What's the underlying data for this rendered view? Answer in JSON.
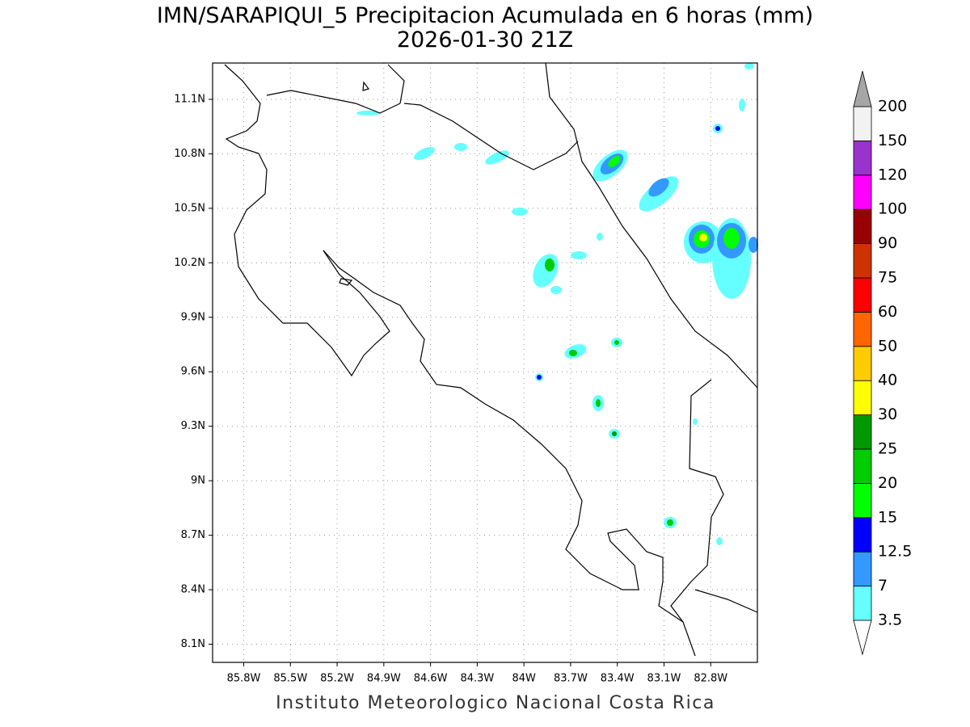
{
  "chart_data": {
    "type": "map",
    "title": "IMN/SARAPIQUI_5 Precipitacion Acumulada en 6 horas (mm)",
    "subtitle": "2026-01-30 21Z",
    "footer": "Instituto Meteorologico Nacional Costa Rica",
    "xlim": [
      -86.0,
      -82.5
    ],
    "ylim": [
      8.0,
      11.3
    ],
    "xticks": [
      {
        "value": -85.8,
        "label": "85.8W"
      },
      {
        "value": -85.5,
        "label": "85.5W"
      },
      {
        "value": -85.2,
        "label": "85.2W"
      },
      {
        "value": -84.9,
        "label": "84.9W"
      },
      {
        "value": -84.6,
        "label": "84.6W"
      },
      {
        "value": -84.3,
        "label": "84.3W"
      },
      {
        "value": -84.0,
        "label": "84W"
      },
      {
        "value": -83.7,
        "label": "83.7W"
      },
      {
        "value": -83.4,
        "label": "83.4W"
      },
      {
        "value": -83.1,
        "label": "83.1W"
      },
      {
        "value": -82.8,
        "label": "82.8W"
      }
    ],
    "yticks": [
      {
        "value": 8.1,
        "label": "8.1N"
      },
      {
        "value": 8.4,
        "label": "8.4N"
      },
      {
        "value": 8.7,
        "label": "8.7N"
      },
      {
        "value": 9.0,
        "label": "9N"
      },
      {
        "value": 9.3,
        "label": "9.3N"
      },
      {
        "value": 9.6,
        "label": "9.6N"
      },
      {
        "value": 9.9,
        "label": "9.9N"
      },
      {
        "value": 10.2,
        "label": "10.2N"
      },
      {
        "value": 10.5,
        "label": "10.5N"
      },
      {
        "value": 10.8,
        "label": "10.8N"
      },
      {
        "value": 11.1,
        "label": "11.1N"
      }
    ],
    "grid": true,
    "colorbar": {
      "levels": [
        3.5,
        7,
        12.5,
        15,
        20,
        25,
        30,
        40,
        50,
        60,
        75,
        90,
        100,
        120,
        150,
        200
      ],
      "colors": [
        "#66ffff",
        "#3399ff",
        "#0000ff",
        "#00ff00",
        "#00cc00",
        "#009900",
        "#ffff00",
        "#ffcc00",
        "#ff6600",
        "#ff0000",
        "#cc3300",
        "#990000",
        "#ff00ff",
        "#9933cc",
        "#f2f2f2"
      ],
      "under_color": "#ffffff",
      "over_color": "#a6a6a6"
    }
  }
}
